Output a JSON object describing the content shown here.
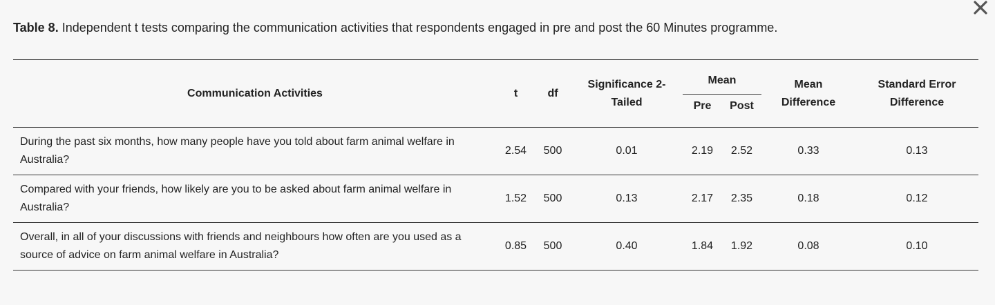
{
  "caption": {
    "label": "Table 8.",
    "text": " Independent t tests comparing the communication activities that respondents engaged in pre and post the 60 Minutes programme."
  },
  "close_icon": "close-icon",
  "table": {
    "headers": {
      "activity": "Communication Activities",
      "t": "t",
      "df": "df",
      "significance_line1": "Significance 2-",
      "significance_line2": "Tailed",
      "mean": "Mean",
      "pre": "Pre",
      "post": "Post",
      "mean_diff_line1": "Mean",
      "mean_diff_line2": "Difference",
      "se_line1": "Standard Error",
      "se_line2": "Difference"
    },
    "rows": [
      {
        "activity": "During the past six months, how many people have you told about farm animal welfare in Australia?",
        "t": "2.54",
        "df": "500",
        "significance": "0.01",
        "pre": "2.19",
        "post": "2.52",
        "mean_difference": "0.33",
        "se_difference": "0.13"
      },
      {
        "activity": "Compared with your friends, how likely are you to be asked about farm animal welfare in Australia?",
        "t": "1.52",
        "df": "500",
        "significance": "0.13",
        "pre": "2.17",
        "post": "2.35",
        "mean_difference": "0.18",
        "se_difference": "0.12"
      },
      {
        "activity": "Overall, in all of your discussions with friends and neighbours how often are you used as a source of advice on farm animal welfare in Australia?",
        "t": "0.85",
        "df": "500",
        "significance": "0.40",
        "pre": "1.84",
        "post": "1.92",
        "mean_difference": "0.08",
        "se_difference": "0.10"
      }
    ]
  }
}
